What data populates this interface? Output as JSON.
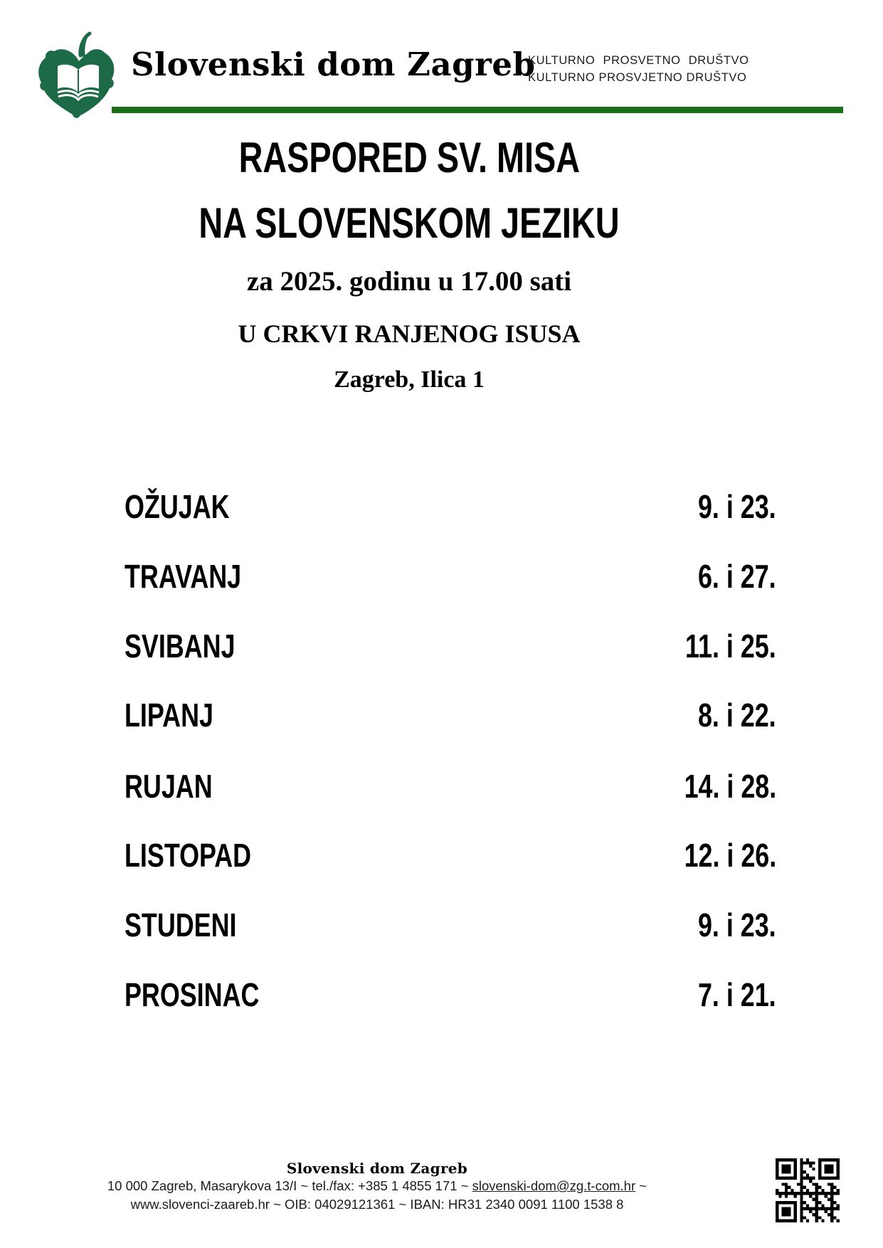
{
  "header": {
    "org_name": "Slovenski dom Zagreb",
    "society_line1": "KULTURNO PROSVETNO DRUŠTVO",
    "society_line2": "KULTURNO PROSVJETNO DRUŠTVO",
    "logo_color": "#1d6a47",
    "rule_color": "#1e6e19"
  },
  "title": {
    "line1": "RASPORED SV. MISA",
    "line2": "NA SLOVENSKOM JEZIKU",
    "line3": "za 2025. godinu u 17.00 sati",
    "line4": "U CRKVI RANJENOG ISUSA",
    "line5": "Zagreb, Ilica 1"
  },
  "schedule": {
    "rows": [
      {
        "month": "OŽUJAK",
        "dates": "9. i 23."
      },
      {
        "month": "TRAVANJ",
        "dates": "6. i 27."
      },
      {
        "month": "SVIBANJ",
        "dates": "11. i 25."
      },
      {
        "month": "LIPANJ",
        "dates": "8. i 22."
      },
      {
        "month": "RUJAN",
        "dates": "14. i 28."
      },
      {
        "month": "LISTOPAD",
        "dates": "12. i 26."
      },
      {
        "month": "STUDENI",
        "dates": "9. i 23."
      },
      {
        "month": "PROSINAC",
        "dates": "7. i 21."
      }
    ]
  },
  "footer": {
    "org_name": "Slovenski dom Zagreb",
    "address_prefix": "10 000 Zagreb, Masarykova 13/I ~ tel./fax: +385 1 4855 171 ~ ",
    "email": "slovenski-dom@zg.t-com.hr",
    "address_suffix": " ~",
    "info_line": "www.slovenci-zaareb.hr ~ OIB: 04029121361 ~ IBAN: HR31 2340 0091 1100 1538 8"
  }
}
